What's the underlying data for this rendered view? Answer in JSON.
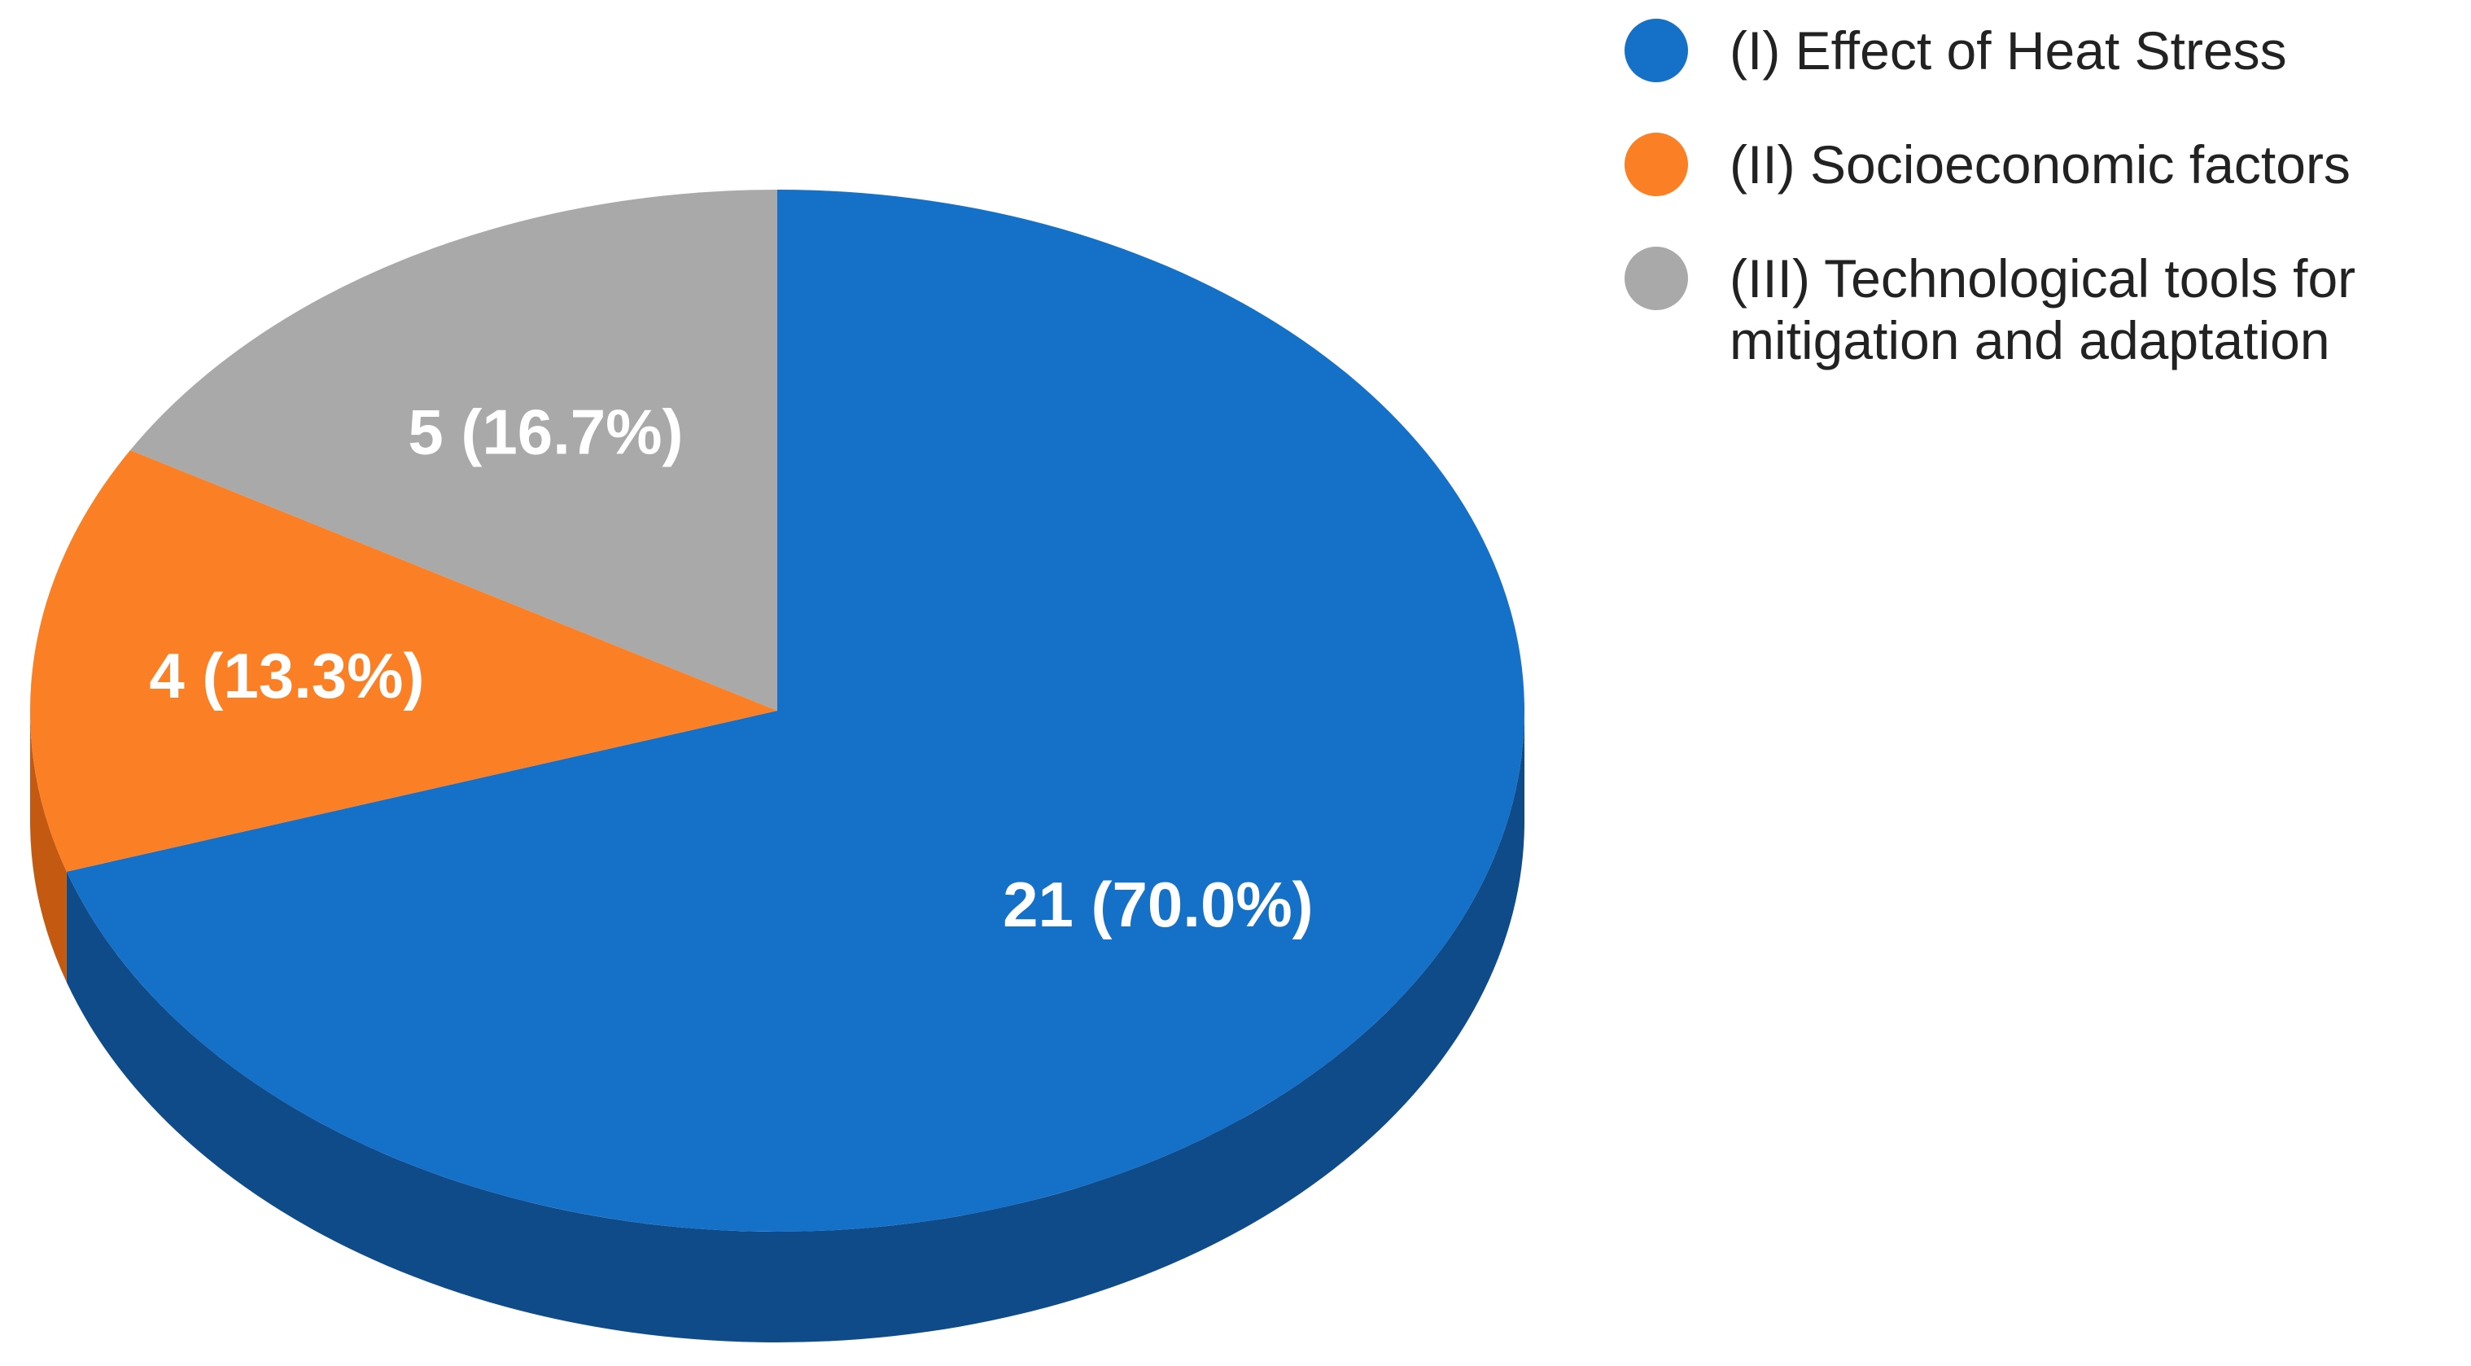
{
  "chart_data": {
    "type": "pie",
    "style": "3d",
    "title": "",
    "series": [
      {
        "name": "",
        "values": [
          21,
          4,
          5
        ]
      }
    ],
    "categories": [
      "(I) Effect of Heat Stress",
      "(II) Socioeconomic factors",
      "(III) Technological tools for mitigation and adaptation"
    ],
    "legend": {
      "placement": "top-right",
      "entries": [
        {
          "lines": [
            "(I) Effect of Heat Stress"
          ],
          "color": "#1570c8"
        },
        {
          "lines": [
            "(II) Socioeconomic factors"
          ],
          "color": "#fb7f24"
        },
        {
          "lines": [
            "(III) Technological tools for",
            "mitigation and adaptation"
          ],
          "color": "#a9a9a9"
        }
      ]
    },
    "slices": [
      {
        "label": "(I) Effect of Heat Stress",
        "value": 21,
        "percent": 70.0,
        "data_label": "21 (70.0%)",
        "color": "#1570c8",
        "side_color": "#0f4b89"
      },
      {
        "label": "(II) Socioeconomic factors",
        "value": 4,
        "percent": 13.3,
        "data_label": "4 (13.3%)",
        "color": "#fb7f24",
        "side_color": "#c45a12"
      },
      {
        "label": "(III) Technological tools for mitigation and adaptation",
        "value": 5,
        "percent": 16.7,
        "data_label": "5 (16.7%)",
        "color": "#a9a9a9",
        "side_color": "#7c7c7c"
      }
    ]
  }
}
